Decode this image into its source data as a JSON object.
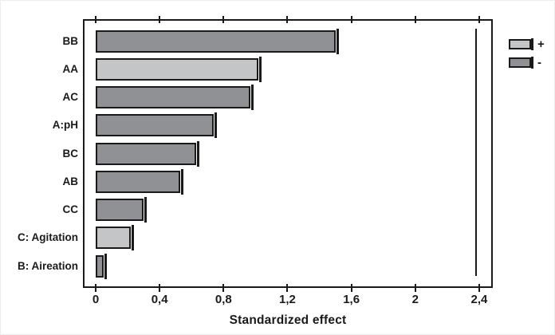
{
  "chart_data": {
    "type": "bar",
    "orientation": "horizontal",
    "title": "",
    "xlabel": "Standardized effect",
    "ylabel": "",
    "categories": [
      "BB",
      "AA",
      "AC",
      "A:pH",
      "BC",
      "AB",
      "CC",
      "C: Agitation",
      "B: Aireation"
    ],
    "values": [
      1.5,
      1.02,
      0.97,
      0.74,
      0.63,
      0.53,
      0.3,
      0.22,
      0.05
    ],
    "signs": [
      "-",
      "+",
      "-",
      "-",
      "-",
      "-",
      "-",
      "+",
      "-"
    ],
    "x_ticks": [
      {
        "value": 0,
        "label": "0"
      },
      {
        "value": 0.4,
        "label": "0,4"
      },
      {
        "value": 0.8,
        "label": "0,8"
      },
      {
        "value": 1.2,
        "label": "1,2"
      },
      {
        "value": 1.6,
        "label": "1,6"
      },
      {
        "value": 2,
        "label": "2"
      },
      {
        "value": 2.4,
        "label": "2,4"
      }
    ],
    "xlim": [
      -0.08,
      2.48
    ],
    "grid": false,
    "reference_line": {
      "value": 2.38,
      "color": "#1a1a1a"
    },
    "legend_position": "top-right-outside",
    "legend": [
      {
        "label": "+",
        "sign": "plus"
      },
      {
        "label": "-",
        "sign": "minus"
      }
    ],
    "colors": {
      "plus": "#c4c5c7",
      "minus": "#909194",
      "border": "#1a1a1a",
      "axis": "#1a1a1a"
    }
  }
}
